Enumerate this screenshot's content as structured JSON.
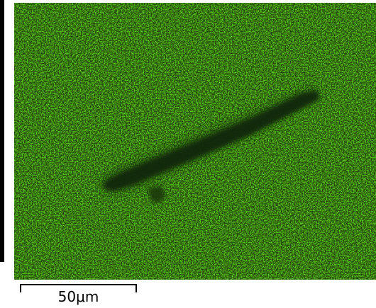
{
  "micrograph": {
    "base_color": "#58c81e",
    "bright_color": "#8ff23a",
    "dark_color": "#1f3a0b",
    "feature_color": "#10200a"
  },
  "scale_bar": {
    "label": "50μm"
  }
}
